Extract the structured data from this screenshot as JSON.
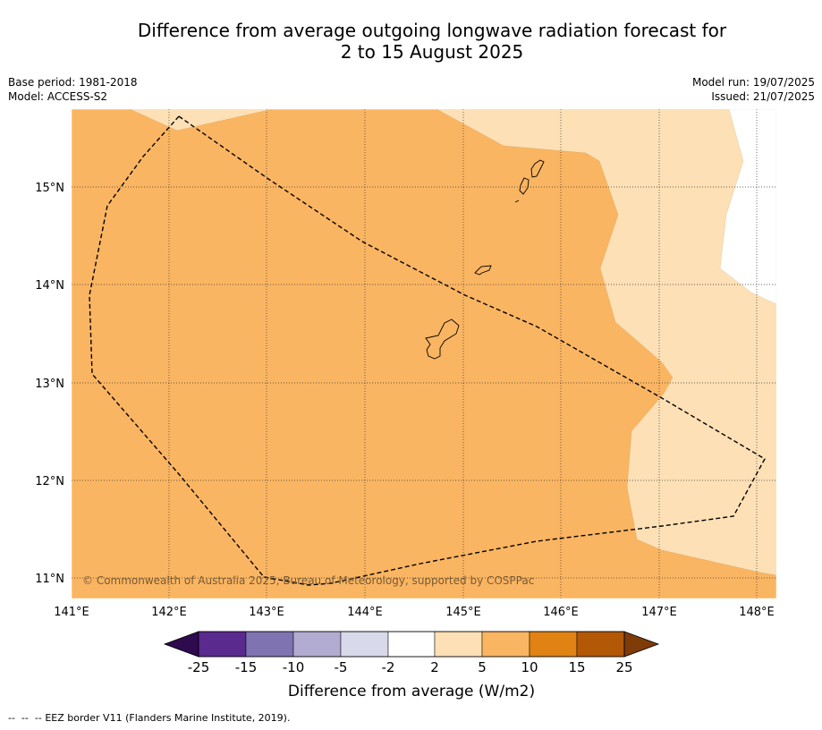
{
  "title": {
    "line1": "Difference from average outgoing longwave radiation forecast for",
    "line2": "2 to 15 August 2025"
  },
  "meta": {
    "base_period": "Base period: 1981-2018",
    "model": "Model: ACCESS-S2",
    "model_run": "Model run: 19/07/2025",
    "issued": "Issued: 21/07/2025"
  },
  "map": {
    "lon_range": [
      141.0,
      148.2
    ],
    "lat_range": [
      10.8,
      15.8
    ],
    "lon_ticks": [
      "141°E",
      "142°E",
      "143°E",
      "144°E",
      "145°E",
      "146°E",
      "147°E",
      "148°E"
    ],
    "lat_ticks": [
      "15°N",
      "14°N",
      "13°N",
      "12°N",
      "11°N"
    ],
    "copyright": "© Commonwealth of Australia 2025, Bureau of Meteorology, supported by COSPPac",
    "colors": {
      "anomaly_5_10": "#fab562",
      "anomaly_2_5": "#fde0b5",
      "anomaly_neutral": "#ffffff"
    }
  },
  "colorbar": {
    "title": "Difference from average (W/m2)",
    "labels": [
      "-25",
      "-15",
      "-10",
      "-5",
      "-2",
      "2",
      "5",
      "10",
      "15",
      "25"
    ],
    "colors": [
      "#2e0a4f",
      "#5b2a8e",
      "#8073b2",
      "#b2abd2",
      "#d8daeb",
      "#ffffff",
      "#fde0b5",
      "#fab562",
      "#e08214",
      "#b35806",
      "#7f3b08"
    ]
  },
  "footer": {
    "legend_symbol": "--  --  --",
    "legend_text": "EEZ border V11 (Flanders Marine Institute, 2019)."
  }
}
